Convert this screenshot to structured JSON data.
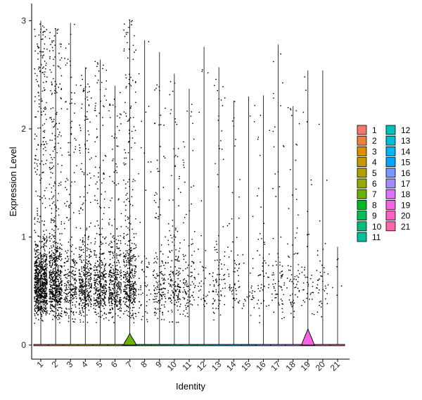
{
  "chart_data": {
    "type": "violin",
    "xlabel": "Identity",
    "ylabel": "Expression Level",
    "ylim": [
      0,
      3.05
    ],
    "yticks": [
      0,
      1,
      2,
      3
    ],
    "categories": [
      "1",
      "2",
      "3",
      "4",
      "5",
      "6",
      "7",
      "8",
      "9",
      "10",
      "11",
      "12",
      "13",
      "14",
      "15",
      "16",
      "17",
      "18",
      "19",
      "20",
      "21"
    ],
    "max_values": [
      3.0,
      2.93,
      2.98,
      2.57,
      2.64,
      2.4,
      3.01,
      2.82,
      2.71,
      2.51,
      2.37,
      2.76,
      2.57,
      2.26,
      2.3,
      2.31,
      2.78,
      2.21,
      2.54,
      2.54,
      0.91
    ],
    "point_density": [
      900,
      650,
      260,
      380,
      360,
      350,
      420,
      60,
      150,
      170,
      110,
      40,
      90,
      60,
      30,
      50,
      70,
      70,
      40,
      40,
      6
    ],
    "violin_peak": {
      "7": 0.11,
      "19": 0.15
    },
    "grid": false,
    "legend_placement": "right",
    "legend": {
      "items": [
        {
          "label": "1",
          "color": "#F8766D"
        },
        {
          "label": "2",
          "color": "#EC8239"
        },
        {
          "label": "3",
          "color": "#DB8E00"
        },
        {
          "label": "4",
          "color": "#C79800"
        },
        {
          "label": "5",
          "color": "#AFA100"
        },
        {
          "label": "6",
          "color": "#93AA00"
        },
        {
          "label": "7",
          "color": "#6BB100"
        },
        {
          "label": "8",
          "color": "#00B81F"
        },
        {
          "label": "9",
          "color": "#00BC59"
        },
        {
          "label": "10",
          "color": "#00BF7D"
        },
        {
          "label": "11",
          "color": "#00C19C"
        },
        {
          "label": "12",
          "color": "#00C0B8"
        },
        {
          "label": "13",
          "color": "#00BCD5"
        },
        {
          "label": "14",
          "color": "#00B4EF"
        },
        {
          "label": "15",
          "color": "#00A5FF"
        },
        {
          "label": "16",
          "color": "#7997FF"
        },
        {
          "label": "17",
          "color": "#A58AFF"
        },
        {
          "label": "18",
          "color": "#DC71FA"
        },
        {
          "label": "19",
          "color": "#F564E3"
        },
        {
          "label": "20",
          "color": "#FF61C9"
        },
        {
          "label": "21",
          "color": "#FF65AC"
        }
      ]
    }
  }
}
